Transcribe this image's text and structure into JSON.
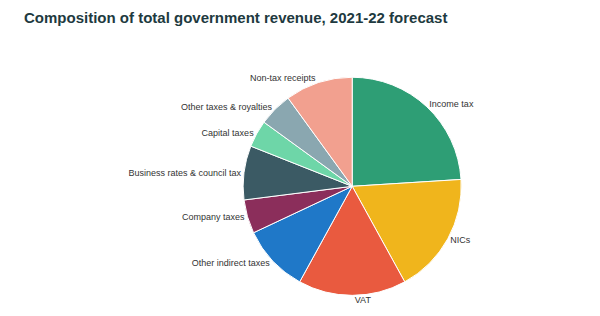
{
  "chart_data": {
    "type": "pie",
    "title": "Composition of total government revenue, 2021-22 forecast",
    "categories": [
      "Income tax",
      "NICs",
      "VAT",
      "Other indirect taxes",
      "Company taxes",
      "Business rates & council tax",
      "Capital taxes",
      "Other taxes & royalties",
      "Non-tax receipts"
    ],
    "values": [
      24,
      18,
      16,
      10,
      5,
      8,
      4,
      5,
      10
    ],
    "colors": [
      "#2e9e75",
      "#f0b51c",
      "#e95a3f",
      "#1f78c8",
      "#8b2e5b",
      "#3b5a64",
      "#6ed6a8",
      "#8aa7b0",
      "#f2a08f"
    ],
    "legend": false,
    "data_labels": false
  }
}
